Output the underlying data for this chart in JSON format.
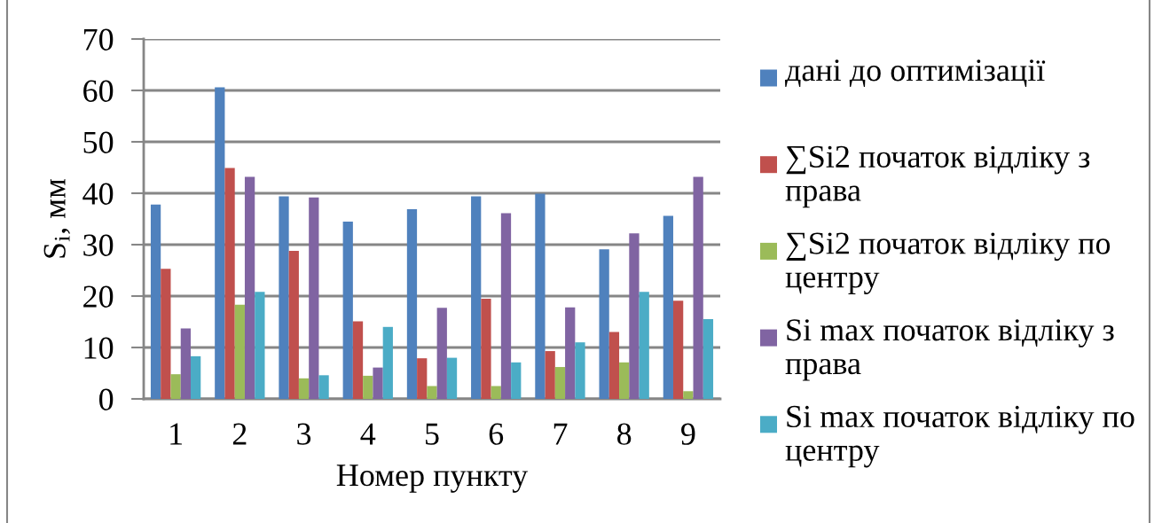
{
  "chart_data": {
    "type": "bar",
    "xlabel": "Номер пункту",
    "ylabel": "S$_{i}$, мм",
    "categories": [
      "1",
      "2",
      "3",
      "4",
      "5",
      "6",
      "7",
      "8",
      "9"
    ],
    "series": [
      {
        "name": "дані до оптимізації",
        "color": "#4f81bd",
        "values": [
          37.8,
          60.6,
          39.4,
          34.5,
          36.9,
          39.4,
          39.9,
          29.1,
          35.6
        ]
      },
      {
        "name": "∑Si2 початок відліку з права",
        "color": "#c0504d",
        "values": [
          25.3,
          44.9,
          28.8,
          15.1,
          7.9,
          19.5,
          9.3,
          13.0,
          19.1
        ]
      },
      {
        "name": "∑Si2 початок відліку по центру",
        "color": "#9bbb59",
        "values": [
          4.8,
          18.3,
          4.0,
          4.5,
          2.5,
          2.5,
          6.2,
          7.1,
          1.5
        ]
      },
      {
        "name": "Si max початок відліку з права",
        "color": "#8064a2",
        "values": [
          13.7,
          43.2,
          39.2,
          6.1,
          17.7,
          36.1,
          17.8,
          32.2,
          43.2
        ]
      },
      {
        "name": "Si max початок відліку по центру",
        "color": "#4bacc6",
        "values": [
          8.3,
          20.8,
          4.6,
          14.0,
          8.0,
          7.1,
          11.0,
          20.8,
          15.5
        ]
      }
    ],
    "ylim": [
      0,
      70
    ],
    "yticks": [
      0,
      10,
      20,
      30,
      40,
      50,
      60,
      70
    ],
    "grid": "y",
    "legend": "right"
  }
}
